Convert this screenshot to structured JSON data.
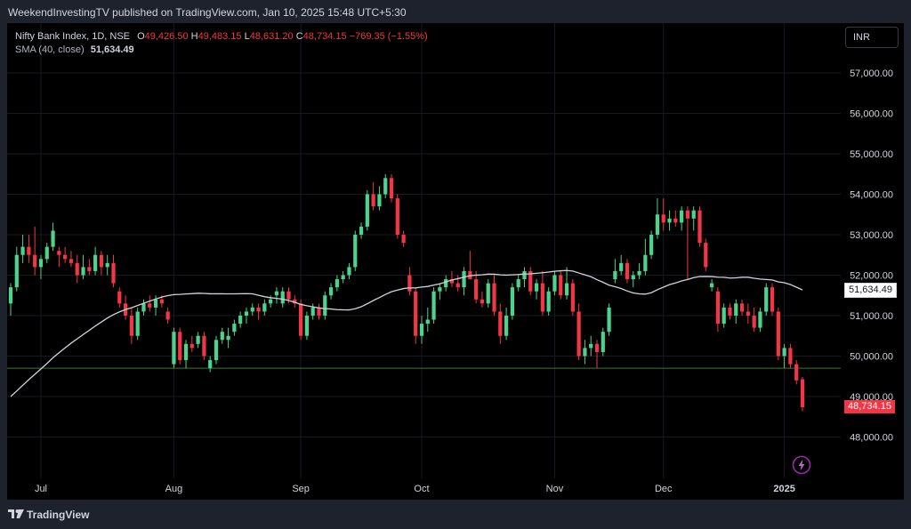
{
  "header": {
    "published": "WeekendInvestingTV published on TradingView.com, Jan 10, 2025 15:48 UTC+5:30"
  },
  "legend": {
    "symbol": "Nifty Bank Index, 1D, NSE",
    "o_label": "O",
    "o_value": "49,426.50",
    "h_label": "H",
    "h_value": "49,483.15",
    "l_label": "L",
    "l_value": "48,631.20",
    "c_label": "C",
    "c_value": "48,734.15",
    "change": "−769.35 (−1.55%)",
    "sma_label": "SMA (40, close)",
    "sma_value": "51,634.49"
  },
  "currency_button": "INR",
  "footer": {
    "brand": "TradingView"
  },
  "colors": {
    "up": "#26a69a",
    "up_body": "#4bd48e",
    "down": "#f23645",
    "sma": "#d1d4dc",
    "support": "#2e7d32"
  },
  "chart_data": {
    "type": "candlestick",
    "y_axis": {
      "min": 47000,
      "max": 58000,
      "ticks": [
        48000,
        49000,
        50000,
        51000,
        52000,
        53000,
        54000,
        55000,
        56000,
        57000
      ],
      "tick_labels": [
        "48,000.00",
        "49,000.00",
        "50,000.00",
        "51,000.00",
        "52,000.00",
        "53,000.00",
        "54,000.00",
        "55,000.00",
        "56,000.00",
        "57,000.00"
      ]
    },
    "x_axis": {
      "labels": [
        {
          "text": "Jul",
          "index": 5
        },
        {
          "text": "Aug",
          "index": 27
        },
        {
          "text": "Sep",
          "index": 48
        },
        {
          "text": "Oct",
          "index": 68
        },
        {
          "text": "Nov",
          "index": 90
        },
        {
          "text": "Dec",
          "index": 108
        },
        {
          "text": "2025",
          "index": 128
        }
      ]
    },
    "price_label": "48,734.15",
    "sma_label": "51,634.49",
    "sma_last": 51634.49,
    "support_level": 49700,
    "candles": [
      [
        51300,
        51800,
        51000,
        51700
      ],
      [
        51700,
        52700,
        51600,
        52500
      ],
      [
        52500,
        53000,
        52300,
        52700
      ],
      [
        52700,
        53000,
        52300,
        52500
      ],
      [
        52500,
        53200,
        52000,
        52200
      ],
      [
        52200,
        52500,
        51900,
        52400
      ],
      [
        52400,
        52800,
        52300,
        52700
      ],
      [
        52700,
        53300,
        52600,
        53100
      ],
      [
        52600,
        52700,
        52200,
        52500
      ],
      [
        52500,
        52700,
        52300,
        52400
      ],
      [
        52400,
        52600,
        52200,
        52300
      ],
      [
        52300,
        52500,
        51800,
        52000
      ],
      [
        52000,
        52500,
        51900,
        52200
      ],
      [
        52200,
        52400,
        52000,
        52100
      ],
      [
        52100,
        52700,
        52000,
        52500
      ],
      [
        52500,
        52600,
        52000,
        52200
      ],
      [
        52200,
        52500,
        52000,
        52300
      ],
      [
        52300,
        52500,
        51700,
        51800
      ],
      [
        51600,
        51700,
        51200,
        51300
      ],
      [
        51300,
        51500,
        50900,
        51000
      ],
      [
        51000,
        51200,
        50300,
        50500
      ],
      [
        50500,
        51200,
        50400,
        51100
      ],
      [
        51100,
        51400,
        51000,
        51300
      ],
      [
        51300,
        51500,
        51100,
        51200
      ],
      [
        51200,
        51500,
        51000,
        51400
      ],
      [
        51400,
        51500,
        51200,
        51300
      ],
      [
        51100,
        51200,
        50800,
        50900
      ],
      [
        49800,
        50700,
        49700,
        50600
      ],
      [
        50600,
        50700,
        49800,
        49900
      ],
      [
        49900,
        50400,
        49700,
        50300
      ],
      [
        50300,
        50500,
        50100,
        50200
      ],
      [
        50300,
        50600,
        50200,
        50500
      ],
      [
        50500,
        50600,
        49900,
        50000
      ],
      [
        49700,
        50000,
        49600,
        49900
      ],
      [
        49900,
        50500,
        49800,
        50400
      ],
      [
        50400,
        50700,
        50300,
        50600
      ],
      [
        50400,
        50700,
        50200,
        50500
      ],
      [
        50600,
        50900,
        50500,
        50800
      ],
      [
        50800,
        51100,
        50700,
        51000
      ],
      [
        51000,
        51200,
        50800,
        51100
      ],
      [
        51100,
        51300,
        51000,
        51200
      ],
      [
        51200,
        51300,
        50900,
        51100
      ],
      [
        51100,
        51400,
        51000,
        51300
      ],
      [
        51300,
        51500,
        51200,
        51400
      ],
      [
        51500,
        51700,
        51300,
        51600
      ],
      [
        51300,
        51700,
        51200,
        51600
      ],
      [
        51600,
        51700,
        51300,
        51400
      ],
      [
        51400,
        51500,
        51200,
        51300
      ],
      [
        51300,
        51400,
        50400,
        50500
      ],
      [
        50500,
        51100,
        50400,
        51000
      ],
      [
        51000,
        51300,
        50900,
        51200
      ],
      [
        51200,
        51300,
        50900,
        51000
      ],
      [
        51000,
        51600,
        50900,
        51500
      ],
      [
        51500,
        51800,
        51400,
        51700
      ],
      [
        51700,
        52000,
        51600,
        51900
      ],
      [
        51900,
        52100,
        51800,
        52000
      ],
      [
        52000,
        52300,
        51900,
        52200
      ],
      [
        52200,
        53100,
        52100,
        53000
      ],
      [
        53000,
        53300,
        52900,
        53200
      ],
      [
        53200,
        54100,
        53100,
        54000
      ],
      [
        54000,
        54300,
        53600,
        53700
      ],
      [
        53700,
        54200,
        53600,
        54000
      ],
      [
        54000,
        54500,
        53900,
        54400
      ],
      [
        54400,
        54500,
        53800,
        53900
      ],
      [
        53900,
        54000,
        52900,
        53000
      ],
      [
        53000,
        53100,
        52700,
        52800
      ],
      [
        52000,
        52200,
        51500,
        51600
      ],
      [
        51600,
        51700,
        50300,
        50500
      ],
      [
        50500,
        51000,
        50300,
        50800
      ],
      [
        50800,
        51200,
        50600,
        50900
      ],
      [
        50900,
        51700,
        50800,
        51600
      ],
      [
        51600,
        51800,
        51400,
        51700
      ],
      [
        51700,
        52000,
        51600,
        51900
      ],
      [
        51900,
        52100,
        51700,
        51800
      ],
      [
        51800,
        52000,
        51600,
        51700
      ],
      [
        51700,
        52200,
        51500,
        52100
      ],
      [
        52100,
        52600,
        51900,
        51900
      ],
      [
        51900,
        52100,
        51300,
        51400
      ],
      [
        51400,
        51600,
        51200,
        51300
      ],
      [
        51300,
        51900,
        51200,
        51800
      ],
      [
        51800,
        52000,
        51000,
        51100
      ],
      [
        51100,
        51300,
        50300,
        50500
      ],
      [
        50500,
        51200,
        50400,
        51000
      ],
      [
        51000,
        51800,
        50900,
        51700
      ],
      [
        51700,
        52000,
        51600,
        51900
      ],
      [
        51900,
        52200,
        51700,
        52100
      ],
      [
        52100,
        52200,
        51500,
        51600
      ],
      [
        51600,
        51900,
        51400,
        51800
      ],
      [
        51800,
        52100,
        51000,
        51100
      ],
      [
        51100,
        51700,
        51000,
        51600
      ],
      [
        51600,
        52100,
        51500,
        52000
      ],
      [
        52000,
        52100,
        51400,
        51500
      ],
      [
        51500,
        52200,
        51400,
        51800
      ],
      [
        51800,
        51900,
        51000,
        51100
      ],
      [
        51100,
        51300,
        49900,
        50000
      ],
      [
        50000,
        50400,
        49800,
        50200
      ],
      [
        50200,
        50500,
        50000,
        50300
      ],
      [
        50300,
        50400,
        49700,
        50100
      ],
      [
        50100,
        50700,
        50000,
        50600
      ],
      [
        50600,
        51300,
        50500,
        51200
      ],
      [
        51900,
        52400,
        51800,
        52100
      ],
      [
        52100,
        52500,
        52000,
        52300
      ],
      [
        52300,
        52400,
        51800,
        51900
      ],
      [
        51900,
        52100,
        51700,
        52000
      ],
      [
        52000,
        52300,
        51900,
        52100
      ],
      [
        52100,
        52900,
        52000,
        52500
      ],
      [
        52500,
        53100,
        52400,
        53000
      ],
      [
        53000,
        53900,
        52900,
        53500
      ],
      [
        53500,
        53900,
        53100,
        53300
      ],
      [
        53300,
        53600,
        53100,
        53400
      ],
      [
        53400,
        53600,
        53200,
        53300
      ],
      [
        53300,
        53700,
        53100,
        53600
      ],
      [
        53600,
        53700,
        51900,
        53400
      ],
      [
        53400,
        53700,
        53100,
        53600
      ],
      [
        53600,
        53700,
        52700,
        52800
      ],
      [
        52800,
        52900,
        52100,
        52200
      ],
      [
        51700,
        51900,
        51600,
        51800
      ],
      [
        51600,
        51700,
        50600,
        50800
      ],
      [
        50800,
        51300,
        50700,
        51200
      ],
      [
        51200,
        51300,
        50900,
        51000
      ],
      [
        51000,
        51400,
        50800,
        51300
      ],
      [
        51300,
        51400,
        51000,
        51100
      ],
      [
        51100,
        51300,
        50800,
        51000
      ],
      [
        51000,
        51200,
        50600,
        50700
      ],
      [
        50700,
        51200,
        50600,
        51100
      ],
      [
        51100,
        51800,
        51000,
        51700
      ],
      [
        51700,
        51800,
        51000,
        51100
      ],
      [
        51100,
        51200,
        49900,
        50000
      ],
      [
        50000,
        50300,
        49700,
        50200
      ],
      [
        50200,
        50300,
        49700,
        49800
      ],
      [
        49800,
        49900,
        49300,
        49400
      ],
      [
        49426.5,
        49483.15,
        48631.2,
        48734.15
      ]
    ]
  }
}
